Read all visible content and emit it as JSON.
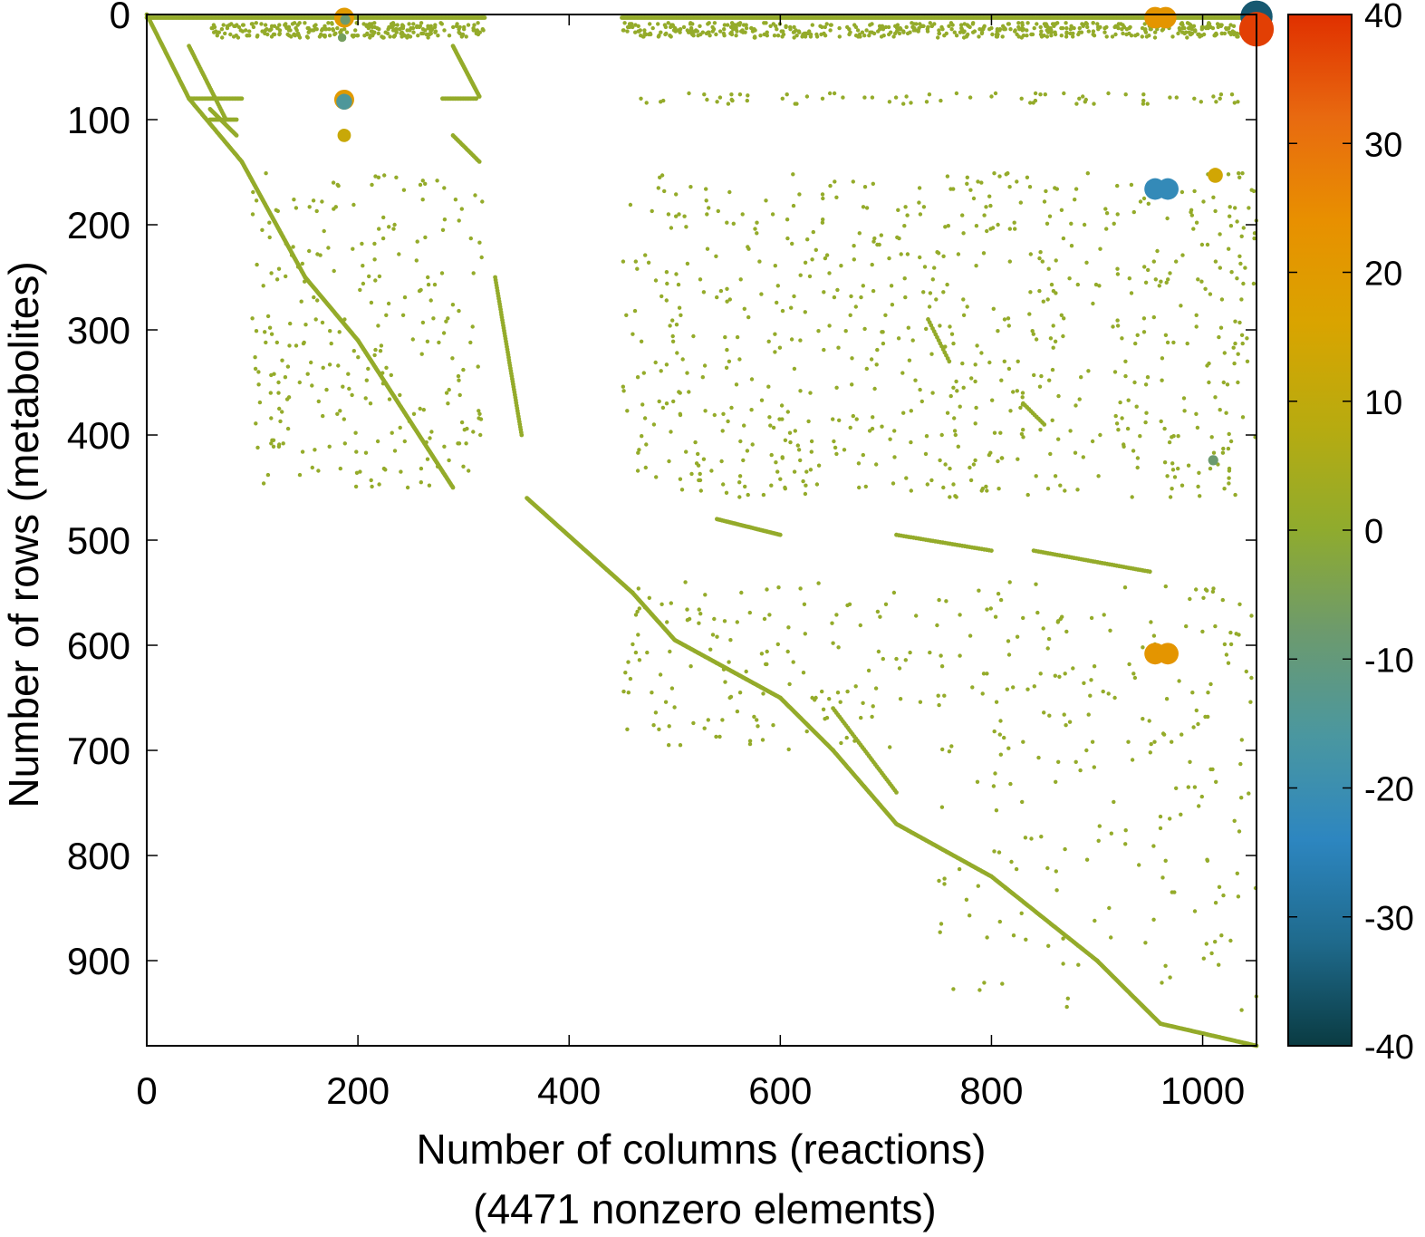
{
  "chart_data": {
    "type": "scatter",
    "subtype": "sparsity pattern",
    "xlabel": "Number of columns (reactions)",
    "xlabel2": "(4471 nonzero elements)",
    "ylabel": "Number of rows (metabolites)",
    "xlim": [
      0,
      1051
    ],
    "ylim": [
      981,
      0
    ],
    "y_inverted": true,
    "x_ticks": [
      0,
      200,
      400,
      600,
      800,
      1000
    ],
    "y_ticks": [
      0,
      100,
      200,
      300,
      400,
      500,
      600,
      700,
      800,
      900
    ],
    "grid": false,
    "colorbar": {
      "range": [
        -40,
        40
      ],
      "ticks": [
        40,
        30,
        20,
        10,
        0,
        -10,
        -20,
        -30,
        -40
      ],
      "colors": [
        "#0a3b42",
        "#1f6a8c",
        "#2d86c0",
        "#4a97a0",
        "#6c9a6e",
        "#8fab2e",
        "#b7ab10",
        "#d9a400",
        "#e89000",
        "#e86a10",
        "#e03000"
      ]
    },
    "nonzero_count": 4471,
    "default_value": 1,
    "structure_segments": [
      {
        "from": [
          0,
          0
        ],
        "to": [
          40,
          80
        ],
        "n": 60
      },
      {
        "from": [
          40,
          80
        ],
        "to": [
          90,
          140
        ],
        "n": 60
      },
      {
        "from": [
          90,
          140
        ],
        "to": [
          150,
          250
        ],
        "n": 110
      },
      {
        "from": [
          150,
          250
        ],
        "to": [
          200,
          310
        ],
        "n": 70
      },
      {
        "from": [
          200,
          310
        ],
        "to": [
          290,
          450
        ],
        "n": 140
      },
      {
        "from": [
          360,
          460
        ],
        "to": [
          460,
          550
        ],
        "n": 130
      },
      {
        "from": [
          460,
          550
        ],
        "to": [
          500,
          595
        ],
        "n": 50
      },
      {
        "from": [
          500,
          595
        ],
        "to": [
          600,
          650
        ],
        "n": 100
      },
      {
        "from": [
          600,
          650
        ],
        "to": [
          650,
          700
        ],
        "n": 60
      },
      {
        "from": [
          650,
          700
        ],
        "to": [
          710,
          770
        ],
        "n": 70
      },
      {
        "from": [
          710,
          770
        ],
        "to": [
          800,
          820
        ],
        "n": 90
      },
      {
        "from": [
          800,
          820
        ],
        "to": [
          900,
          900
        ],
        "n": 90
      },
      {
        "from": [
          900,
          900
        ],
        "to": [
          960,
          960
        ],
        "n": 70
      },
      {
        "from": [
          960,
          960
        ],
        "to": [
          1051,
          981
        ],
        "n": 80
      },
      {
        "from": [
          0,
          3
        ],
        "to": [
          320,
          3
        ],
        "n": 280
      },
      {
        "from": [
          450,
          3
        ],
        "to": [
          1051,
          3
        ],
        "n": 520
      },
      {
        "from": [
          40,
          30
        ],
        "to": [
          75,
          100
        ],
        "n": 40
      },
      {
        "from": [
          60,
          90
        ],
        "to": [
          85,
          115
        ],
        "n": 30
      },
      {
        "from": [
          40,
          80
        ],
        "to": [
          90,
          80
        ],
        "n": 40
      },
      {
        "from": [
          60,
          100
        ],
        "to": [
          85,
          100
        ],
        "n": 20
      },
      {
        "from": [
          290,
          30
        ],
        "to": [
          315,
          78
        ],
        "n": 40
      },
      {
        "from": [
          280,
          80
        ],
        "to": [
          312,
          80
        ],
        "n": 25
      },
      {
        "from": [
          330,
          250
        ],
        "to": [
          355,
          400
        ],
        "n": 60
      },
      {
        "from": [
          290,
          115
        ],
        "to": [
          315,
          140
        ],
        "n": 20
      },
      {
        "from": [
          540,
          480
        ],
        "to": [
          600,
          495
        ],
        "n": 40
      },
      {
        "from": [
          710,
          495
        ],
        "to": [
          800,
          510
        ],
        "n": 40
      },
      {
        "from": [
          840,
          510
        ],
        "to": [
          950,
          530
        ],
        "n": 50
      },
      {
        "from": [
          650,
          660
        ],
        "to": [
          710,
          740
        ],
        "n": 40
      },
      {
        "from": [
          740,
          290
        ],
        "to": [
          760,
          330
        ],
        "n": 15
      },
      {
        "from": [
          830,
          370
        ],
        "to": [
          850,
          390
        ],
        "n": 12
      }
    ],
    "scatter_regions": [
      {
        "cols": [
          60,
          320
        ],
        "rows": [
          8,
          22
        ],
        "n": 260
      },
      {
        "cols": [
          450,
          1051
        ],
        "rows": [
          8,
          22
        ],
        "n": 520
      },
      {
        "cols": [
          450,
          1051
        ],
        "rows": [
          75,
          85
        ],
        "n": 70
      },
      {
        "cols": [
          100,
          320
        ],
        "rows": [
          150,
          450
        ],
        "n": 260
      },
      {
        "cols": [
          450,
          1051
        ],
        "rows": [
          150,
          460
        ],
        "n": 700
      },
      {
        "cols": [
          450,
          1051
        ],
        "rows": [
          540,
          700
        ],
        "n": 260
      },
      {
        "cols": [
          750,
          1051
        ],
        "rows": [
          700,
          950
        ],
        "n": 110
      }
    ],
    "highlighted_points": [
      {
        "col": 187,
        "row": 3,
        "value": 20
      },
      {
        "col": 188,
        "row": 5,
        "value": -8
      },
      {
        "col": 185,
        "row": 22,
        "value": -6
      },
      {
        "col": 187,
        "row": 81,
        "value": 20
      },
      {
        "col": 187,
        "row": 83,
        "value": -15
      },
      {
        "col": 187,
        "row": 115,
        "value": 12
      },
      {
        "col": 955,
        "row": 3,
        "value": 22
      },
      {
        "col": 965,
        "row": 3,
        "value": 22
      },
      {
        "col": 1051,
        "row": 2,
        "value": -35
      },
      {
        "col": 1051,
        "row": 14,
        "value": 38
      },
      {
        "col": 955,
        "row": 166,
        "value": -22
      },
      {
        "col": 967,
        "row": 166,
        "value": -22
      },
      {
        "col": 1012,
        "row": 153,
        "value": 14
      },
      {
        "col": 1010,
        "row": 424,
        "value": -8
      },
      {
        "col": 955,
        "row": 608,
        "value": 22
      },
      {
        "col": 967,
        "row": 608,
        "value": 22
      }
    ]
  }
}
